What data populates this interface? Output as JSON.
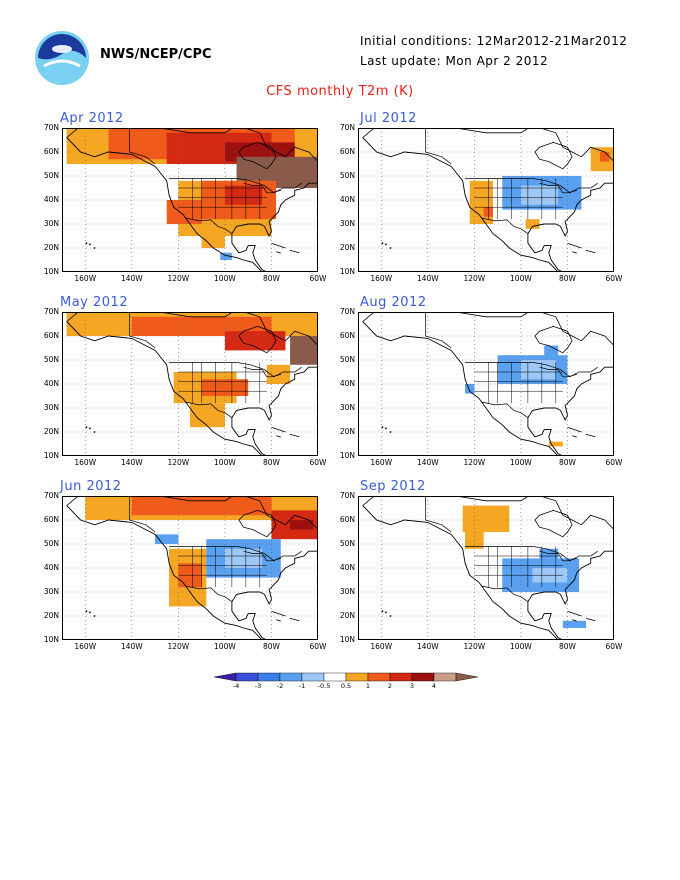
{
  "header": {
    "agency": "NWS/NCEP/CPC",
    "initial_conditions": "Initial conditions: 12Mar2012-21Mar2012",
    "last_update": "Last update: Mon Apr 2 2012",
    "title": "CFS monthly T2m (K)"
  },
  "logo": {
    "icon": "noaa-logo-icon"
  },
  "axes": {
    "lat_labels": [
      "70N",
      "60N",
      "50N",
      "40N",
      "30N",
      "20N",
      "10N"
    ],
    "lon_labels": [
      "160W",
      "140W",
      "120W",
      "100W",
      "80W",
      "60W"
    ]
  },
  "panels": [
    {
      "id": "apr",
      "title": "Apr 2012"
    },
    {
      "id": "jul",
      "title": "Jul 2012"
    },
    {
      "id": "may",
      "title": "May 2012"
    },
    {
      "id": "aug",
      "title": "Aug 2012"
    },
    {
      "id": "jun",
      "title": "Jun 2012"
    },
    {
      "id": "sep",
      "title": "Sep 2012"
    }
  ],
  "colorbar": {
    "labels": [
      "-4",
      "-3",
      "-2",
      "-1",
      "-0.5",
      "0.5",
      "1",
      "2",
      "3",
      "4"
    ],
    "colors": [
      "#3b1ea8",
      "#3c4fd8",
      "#3a7fe8",
      "#5aa0f0",
      "#9ec8f8",
      "#ffffff",
      "#f5a623",
      "#f05a1a",
      "#d42a14",
      "#9c1010",
      "#c8a08a",
      "#8a5a4a"
    ]
  },
  "legend_colors": {
    "pos_0_5": "#f5a623",
    "pos_1": "#f05a1a",
    "pos_2": "#d42a14",
    "pos_3": "#9c1010",
    "pos_4": "#8a5a4a",
    "neg_0_5": "#9ec8f8",
    "neg_1": "#5aa0f0"
  }
}
